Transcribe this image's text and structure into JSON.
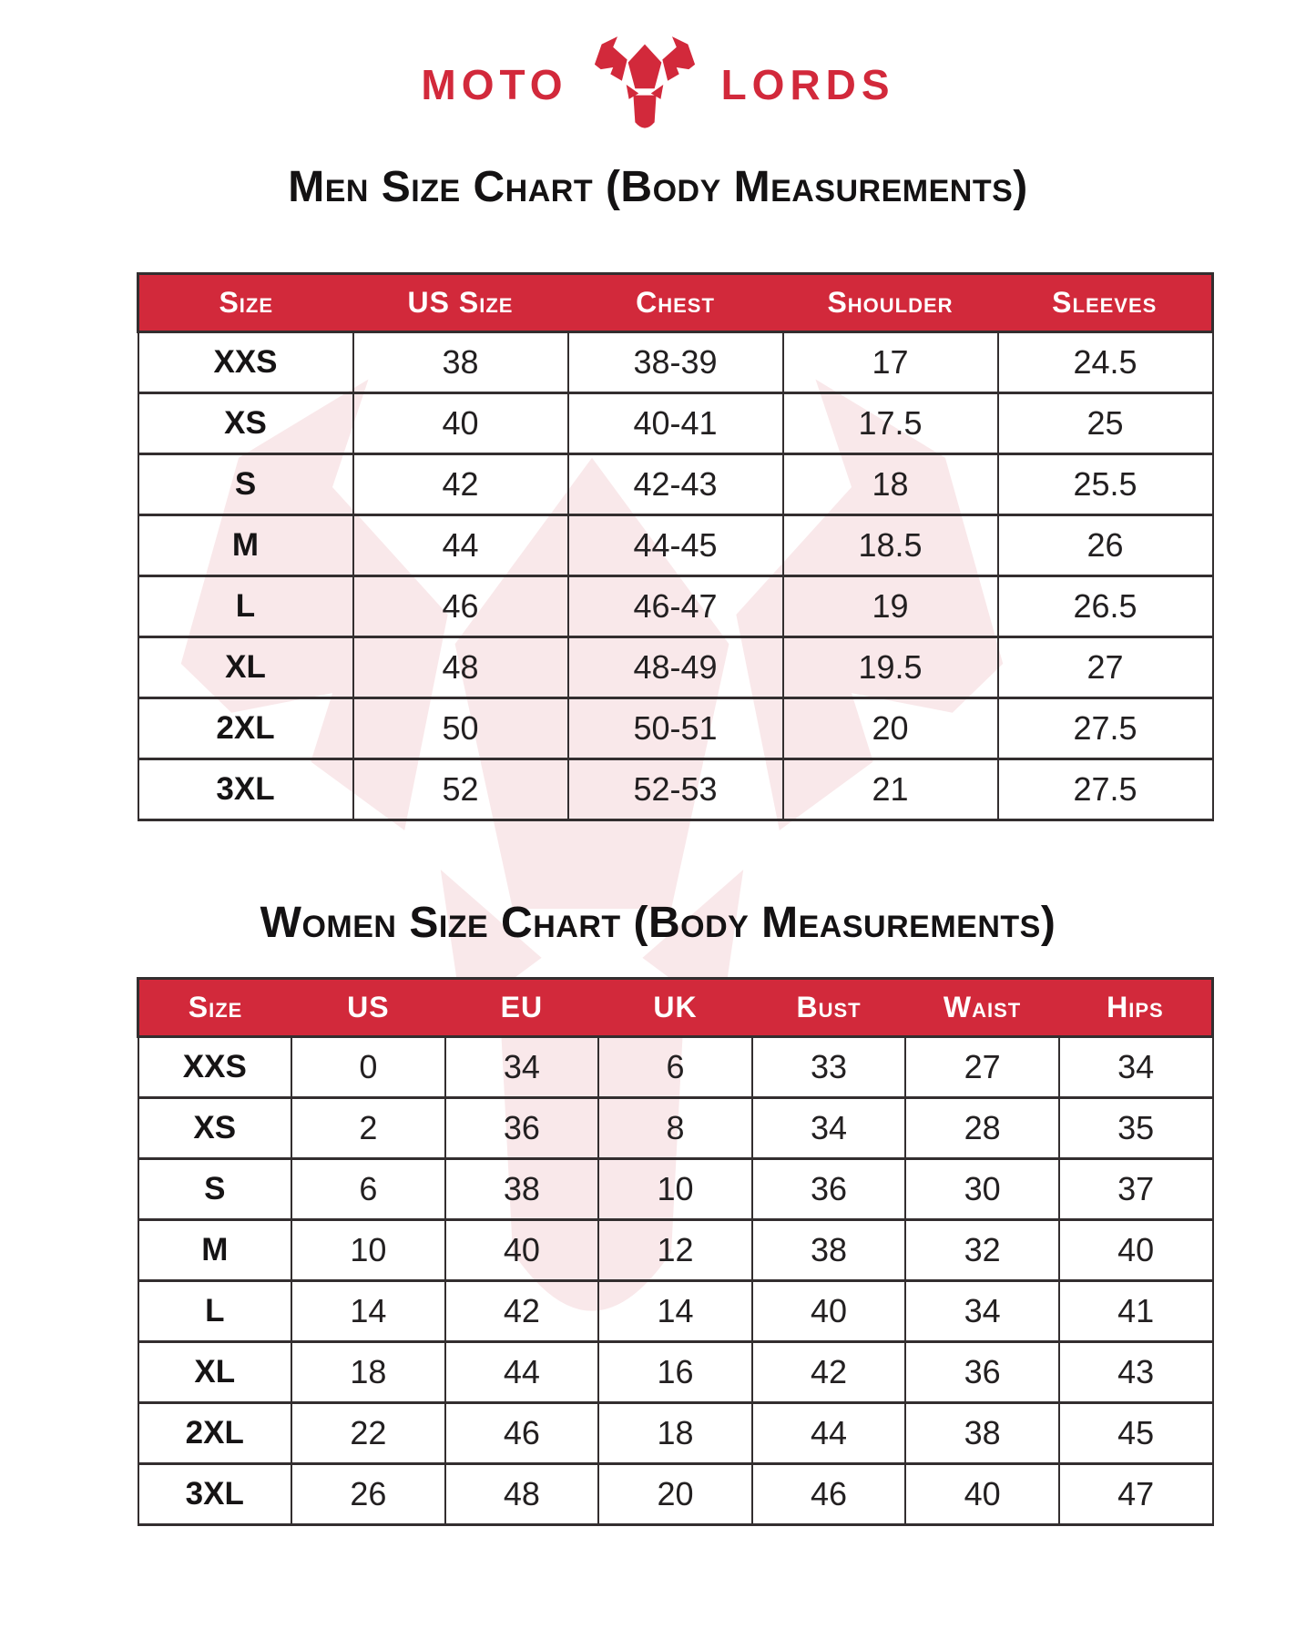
{
  "brand": {
    "word_left": "MOTO",
    "word_right": "LORDS",
    "icon": "bull-head-icon"
  },
  "colors": {
    "accent_red": "#d2293b",
    "watermark_pink": "#f9e8ea",
    "border_dark": "#332e2f",
    "header_text": "#ffffff",
    "body_text": "#1b1819"
  },
  "men_chart": {
    "title": "Men Size Chart (Body Measurements)",
    "columns": [
      "Size",
      "US Size",
      "Chest",
      "Shoulder",
      "Sleeves"
    ],
    "rows": [
      [
        "XXS",
        "38",
        "38-39",
        "17",
        "24.5"
      ],
      [
        "XS",
        "40",
        "40-41",
        "17.5",
        "25"
      ],
      [
        "S",
        "42",
        "42-43",
        "18",
        "25.5"
      ],
      [
        "M",
        "44",
        "44-45",
        "18.5",
        "26"
      ],
      [
        "L",
        "46",
        "46-47",
        "19",
        "26.5"
      ],
      [
        "XL",
        "48",
        "48-49",
        "19.5",
        "27"
      ],
      [
        "2XL",
        "50",
        "50-51",
        "20",
        "27.5"
      ],
      [
        "3XL",
        "52",
        "52-53",
        "21",
        "27.5"
      ]
    ]
  },
  "women_chart": {
    "title": "Women Size Chart (Body Measurements)",
    "columns": [
      "Size",
      "US",
      "EU",
      "UK",
      "Bust",
      "Waist",
      "Hips"
    ],
    "rows": [
      [
        "XXS",
        "0",
        "34",
        "6",
        "33",
        "27",
        "34"
      ],
      [
        "XS",
        "2",
        "36",
        "8",
        "34",
        "28",
        "35"
      ],
      [
        "S",
        "6",
        "38",
        "10",
        "36",
        "30",
        "37"
      ],
      [
        "M",
        "10",
        "40",
        "12",
        "38",
        "32",
        "40"
      ],
      [
        "L",
        "14",
        "42",
        "14",
        "40",
        "34",
        "41"
      ],
      [
        "XL",
        "18",
        "44",
        "16",
        "42",
        "36",
        "43"
      ],
      [
        "2XL",
        "22",
        "46",
        "18",
        "44",
        "38",
        "45"
      ],
      [
        "3XL",
        "26",
        "48",
        "20",
        "46",
        "40",
        "47"
      ]
    ]
  }
}
